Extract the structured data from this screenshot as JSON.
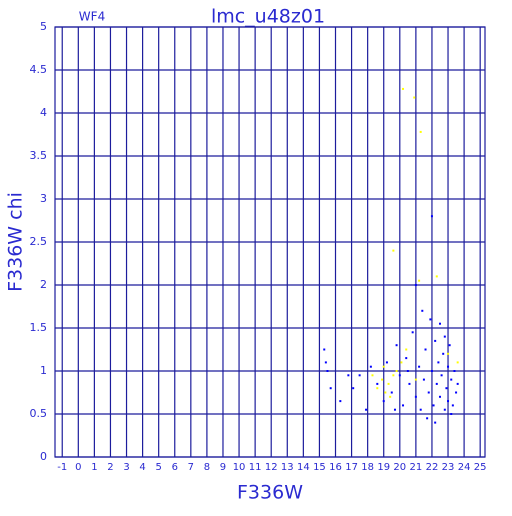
{
  "chart_data": {
    "type": "scatter",
    "title": "lmc_u48z01",
    "subtitle": "WF4",
    "x_label": "F336W",
    "y_label": "F336W chi",
    "xlim": [
      -1.45,
      25.3
    ],
    "ylim": [
      0,
      5
    ],
    "xticks": [
      -1,
      0,
      1,
      2,
      3,
      4,
      5,
      6,
      7,
      8,
      9,
      10,
      11,
      12,
      13,
      14,
      15,
      16,
      17,
      18,
      19,
      20,
      21,
      22,
      23,
      24,
      25
    ],
    "yticks": [
      0,
      0.5,
      1,
      1.5,
      2,
      2.5,
      3,
      3.5,
      4,
      4.5,
      5
    ],
    "grid": true,
    "grid_color": "#1c1c9c",
    "text_color": "#2a2ad0",
    "series": [
      {
        "color": "#0000ff",
        "x": [
          15.3,
          15.4,
          15.5,
          15.7,
          16.3,
          16.8,
          17.1,
          17.5,
          17.9,
          18.2,
          18.6,
          19.0,
          19.2,
          19.5,
          19.8,
          20.0,
          20.2,
          20.4,
          20.6,
          20.8,
          21.0,
          21.0,
          21.2,
          21.3,
          21.5,
          21.6,
          21.8,
          21.9,
          22.0,
          22.0,
          22.1,
          22.2,
          22.3,
          22.4,
          22.5,
          22.6,
          22.7,
          22.8,
          22.9,
          23.0,
          23.0,
          23.1,
          23.2,
          23.3,
          23.4,
          23.5,
          23.6,
          22.5,
          21.7,
          22.2,
          20.5,
          19.7,
          23.2,
          22.8,
          21.4
        ],
        "values": [
          1.25,
          1.1,
          1.0,
          0.8,
          0.65,
          0.95,
          0.8,
          0.95,
          0.55,
          1.05,
          0.85,
          0.65,
          1.1,
          0.75,
          1.3,
          0.95,
          0.6,
          1.15,
          0.85,
          1.45,
          0.7,
          2.0,
          1.05,
          0.55,
          0.9,
          1.25,
          0.75,
          1.6,
          2.8,
          1.0,
          0.6,
          1.35,
          0.85,
          1.1,
          0.7,
          0.95,
          1.2,
          0.55,
          0.8,
          1.05,
          0.65,
          1.3,
          0.9,
          0.6,
          1.0,
          0.75,
          0.85,
          1.55,
          0.45,
          0.4,
          1.0,
          0.55,
          0.5,
          1.4,
          1.7
        ]
      },
      {
        "color": "#ffff00",
        "x": [
          20.2,
          20.9,
          21.3,
          19.6,
          21.2,
          22.3,
          18.3,
          18.6,
          18.9,
          19.1,
          19.3,
          19.6,
          19.8,
          20.1,
          20.4,
          19.0,
          23.0,
          23.6,
          21.0,
          19.4
        ],
        "values": [
          4.28,
          4.18,
          3.78,
          2.4,
          2.05,
          2.1,
          0.95,
          0.8,
          0.9,
          0.75,
          0.85,
          0.95,
          1.0,
          1.1,
          1.25,
          1.05,
          1.2,
          1.1,
          0.9,
          0.7
        ]
      }
    ]
  }
}
